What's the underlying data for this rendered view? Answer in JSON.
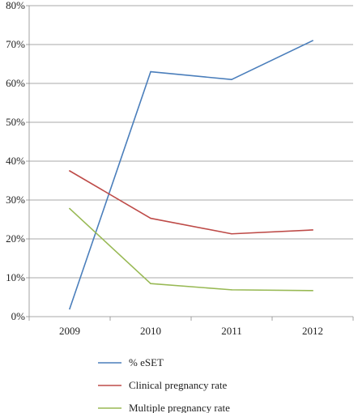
{
  "chart_data": {
    "type": "line",
    "categories": [
      "2009",
      "2010",
      "2011",
      "2012"
    ],
    "ylim": [
      0,
      80
    ],
    "yticks": [
      0,
      10,
      20,
      30,
      40,
      50,
      60,
      70,
      80
    ],
    "ytick_labels": [
      "0%",
      "10%",
      "20%",
      "30%",
      "40%",
      "50%",
      "60%",
      "70%",
      "80%"
    ],
    "grid": true,
    "legend_position": "bottom",
    "series": [
      {
        "name": "% eSET",
        "color": "#4a7ebb",
        "values": [
          2,
          63,
          61,
          71
        ]
      },
      {
        "name": "Clinical pregnancy rate",
        "color": "#be4b48",
        "values": [
          37.5,
          25.3,
          21.3,
          22.3
        ]
      },
      {
        "name": "Multiple pregnancy rate",
        "color": "#98b954",
        "values": [
          27.8,
          8.5,
          6.9,
          6.7
        ]
      }
    ]
  }
}
